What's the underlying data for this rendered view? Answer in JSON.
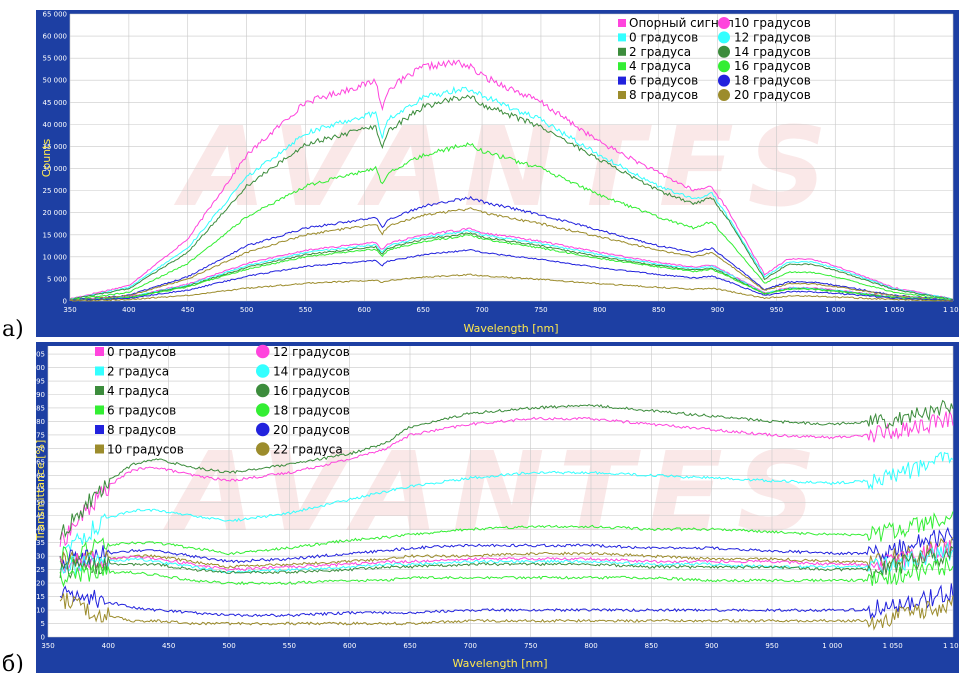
{
  "panels": [
    {
      "letter": "а)",
      "watermark": "AVANTES",
      "chart_data": {
        "type": "line",
        "xlabel": "Wavelength [nm]",
        "ylabel": "Counts",
        "xlim": [
          350,
          1100
        ],
        "ylim": [
          0,
          65000
        ],
        "xticks": [
          "350",
          "400",
          "450",
          "500",
          "550",
          "600",
          "650",
          "700",
          "750",
          "800",
          "850",
          "900",
          "950",
          "1 000",
          "1 050",
          "1 100"
        ],
        "yticks": [
          "0",
          "5 000",
          "10 000",
          "15 000",
          "20 000",
          "25 000",
          "30 000",
          "35 000",
          "40 000",
          "45 000",
          "50 000",
          "55 000",
          "60 000",
          "65 000"
        ],
        "grid": true,
        "legend_position": "top-right",
        "legend": [
          {
            "label": "Опорный сигнал",
            "color": "#ff44dd",
            "marker": "square"
          },
          {
            "label": "0 градусов",
            "color": "#33ffff",
            "marker": "square"
          },
          {
            "label": "2 градуса",
            "color": "#3c8c3c",
            "marker": "square"
          },
          {
            "label": "4 градуса",
            "color": "#33ee33",
            "marker": "square"
          },
          {
            "label": "6 градусов",
            "color": "#2222dd",
            "marker": "square"
          },
          {
            "label": "8 градусов",
            "color": "#9c8c2c",
            "marker": "square"
          },
          {
            "label": "10 градусов",
            "color": "#ff44dd",
            "marker": "circle"
          },
          {
            "label": "12 градусов",
            "color": "#33ffff",
            "marker": "circle"
          },
          {
            "label": "14 градусов",
            "color": "#3c8c3c",
            "marker": "circle"
          },
          {
            "label": "16 градусов",
            "color": "#33ee33",
            "marker": "circle"
          },
          {
            "label": "18 градусов",
            "color": "#2222dd",
            "marker": "circle"
          },
          {
            "label": "20 градусов",
            "color": "#9c8c2c",
            "marker": "circle"
          }
        ],
        "x": [
          350,
          400,
          450,
          500,
          550,
          600,
          610,
          615,
          620,
          650,
          680,
          690,
          700,
          750,
          800,
          850,
          880,
          895,
          910,
          940,
          960,
          980,
          1000,
          1050,
          1100
        ],
        "series": [
          {
            "color": "#ff44dd",
            "values": [
              500,
              3500,
              14000,
              33000,
              45000,
              49000,
              50000,
              43000,
              48000,
              53000,
              54000,
              53000,
              51000,
              45000,
              36000,
              29000,
              25000,
              26000,
              20000,
              6000,
              9500,
              9500,
              8000,
              3000,
              500
            ]
          },
          {
            "color": "#33ffff",
            "values": [
              400,
              3000,
              12000,
              28000,
              38000,
              42000,
              42500,
              37000,
              41000,
              46000,
              48000,
              48000,
              46500,
              41000,
              33000,
              26000,
              23000,
              24500,
              18500,
              5500,
              8800,
              8800,
              7500,
              2800,
              400
            ]
          },
          {
            "color": "#3c8c3c",
            "values": [
              350,
              2800,
              11000,
              26000,
              35500,
              39000,
              39500,
              34000,
              38500,
              44000,
              46000,
              46500,
              44500,
              39500,
              32000,
              25000,
              22000,
              23500,
              18000,
              5000,
              8300,
              8300,
              7000,
              2600,
              350
            ]
          },
          {
            "color": "#33ee33",
            "values": [
              250,
              2000,
              8500,
              19000,
              26000,
              29500,
              30000,
              26000,
              29000,
              33000,
              35000,
              35500,
              34000,
              30000,
              24000,
              19000,
              16500,
              18000,
              13500,
              4000,
              6500,
              6500,
              5500,
              2000,
              250
            ]
          },
          {
            "color": "#2222dd",
            "values": [
              150,
              1300,
              5500,
              12500,
              16500,
              18500,
              19000,
              16500,
              18500,
              21500,
              23000,
              23500,
              22500,
              19500,
              16000,
              12500,
              11000,
              12000,
              9000,
              2600,
              4300,
              4300,
              3600,
              1300,
              150
            ]
          },
          {
            "color": "#9c8c2c",
            "values": [
              140,
              1200,
              5000,
              11000,
              15000,
              17000,
              17500,
              15000,
              17000,
              19500,
              20500,
              21000,
              20000,
              17500,
              14500,
              11500,
              10000,
              11000,
              8200,
              2400,
              3900,
              3900,
              3300,
              1200,
              140
            ]
          },
          {
            "color": "#ff44dd",
            "values": [
              110,
              900,
              3800,
              8500,
              11500,
              13000,
              13300,
              11500,
              13000,
              15000,
              16000,
              16500,
              15500,
              13500,
              11000,
              8700,
              7700,
              8200,
              6200,
              1800,
              3000,
              3000,
              2500,
              900,
              110
            ]
          },
          {
            "color": "#33ffff",
            "values": [
              100,
              850,
              3600,
              8000,
              11000,
              12500,
              12800,
              11000,
              12500,
              14500,
              15500,
              16000,
              15000,
              13000,
              10500,
              8300,
              7300,
              7900,
              6000,
              1700,
              2900,
              2900,
              2400,
              850,
              100
            ]
          },
          {
            "color": "#3c8c3c",
            "values": [
              95,
              800,
              3400,
              7600,
              10500,
              12000,
              12200,
              10500,
              12000,
              14000,
              15000,
              15500,
              14500,
              12500,
              10000,
              8000,
              7000,
              7500,
              5700,
              1650,
              2750,
              2750,
              2300,
              800,
              95
            ]
          },
          {
            "color": "#33ee33",
            "values": [
              90,
              750,
              3200,
              7200,
              10000,
              11500,
              11700,
              10000,
              11500,
              13500,
              14500,
              15000,
              14000,
              12000,
              9600,
              7700,
              6700,
              7200,
              5500,
              1600,
              2650,
              2650,
              2200,
              780,
              90
            ]
          },
          {
            "color": "#2222dd",
            "values": [
              70,
              600,
              2500,
              5600,
              7800,
              9000,
              9200,
              8000,
              9000,
              10500,
              11300,
              11700,
              11000,
              9400,
              7500,
              6000,
              5200,
              5600,
              4300,
              1250,
              2100,
              2100,
              1750,
              620,
              70
            ]
          },
          {
            "color": "#9c8c2c",
            "values": [
              40,
              300,
              1300,
              2900,
              4000,
              4600,
              4700,
              4100,
              4600,
              5400,
              5800,
              6000,
              5700,
              4900,
              3900,
              3100,
              2700,
              2900,
              2200,
              650,
              1100,
              1100,
              900,
              330,
              40
            ]
          }
        ]
      }
    },
    {
      "letter": "б)",
      "watermark": "AVANTES",
      "chart_data": {
        "type": "line",
        "xlabel": "Wavelength [nm]",
        "ylabel": "Transmittance [%]",
        "xlim": [
          350,
          1100
        ],
        "ylim": [
          0,
          108
        ],
        "xticks": [
          "350",
          "400",
          "450",
          "500",
          "550",
          "600",
          "650",
          "700",
          "750",
          "800",
          "850",
          "900",
          "950",
          "1 000",
          "1 050",
          "1 100"
        ],
        "yticks": [
          "0",
          "5",
          "10",
          "15",
          "20",
          "25",
          "30",
          "35",
          "40",
          "45",
          "50",
          "55",
          "60",
          "65",
          "70",
          "75",
          "80",
          "85",
          "90",
          "95",
          "100",
          "105"
        ],
        "grid": true,
        "legend_position": "top-left",
        "legend": [
          {
            "label": "0 градусов",
            "color": "#ff44dd",
            "marker": "square"
          },
          {
            "label": "2 градуса",
            "color": "#33ffff",
            "marker": "square"
          },
          {
            "label": "4 градуса",
            "color": "#3c8c3c",
            "marker": "square"
          },
          {
            "label": "6 градусов",
            "color": "#33ee33",
            "marker": "square"
          },
          {
            "label": "8 градусов",
            "color": "#2222dd",
            "marker": "square"
          },
          {
            "label": "10 градусов",
            "color": "#9c8c2c",
            "marker": "square"
          },
          {
            "label": "12 градусов",
            "color": "#ff44dd",
            "marker": "circle"
          },
          {
            "label": "14 градусов",
            "color": "#33ffff",
            "marker": "circle"
          },
          {
            "label": "16 градусов",
            "color": "#3c8c3c",
            "marker": "circle"
          },
          {
            "label": "18 градусов",
            "color": "#33ee33",
            "marker": "circle"
          },
          {
            "label": "20 градусов",
            "color": "#2222dd",
            "marker": "circle"
          },
          {
            "label": "22 градуса",
            "color": "#9c8c2c",
            "marker": "circle"
          }
        ],
        "x": [
          360,
          380,
          400,
          420,
          440,
          470,
          500,
          550,
          600,
          630,
          650,
          700,
          750,
          800,
          850,
          900,
          950,
          1000,
          1030,
          1060,
          1080,
          1100
        ],
        "series": [
          {
            "color": "#ff44dd",
            "values": [
              35,
              46,
              56,
              62,
              63,
              60,
              58,
              61,
              66,
              70,
              75,
              79,
              81,
              81,
              79,
              77,
              75,
              74,
              75,
              77,
              79,
              81
            ]
          },
          {
            "color": "#3c8c3c",
            "values": [
              38,
              48,
              58,
              64,
              66,
              63,
              61,
              64,
              68,
              72,
              78,
              83,
              85,
              86,
              84,
              82,
              80,
              79,
              80,
              82,
              84,
              85
            ]
          },
          {
            "color": "#33ffff",
            "values": [
              30,
              38,
              44,
              47,
              47,
              45,
              43,
              46,
              51,
              54,
              56,
              59,
              61,
              61,
              60,
              59,
              58,
              57,
              58,
              61,
              64,
              67
            ]
          },
          {
            "color": "#33ee33",
            "values": [
              30,
              32,
              34,
              35,
              35,
              33,
              31,
              33,
              36,
              37,
              38,
              40,
              41,
              41,
              40,
              40,
              39,
              38,
              38,
              40,
              42,
              44
            ]
          },
          {
            "color": "#2222dd",
            "values": [
              28,
              30,
              31,
              32,
              32,
              30,
              28,
              29,
              31,
              32,
              33,
              34,
              34,
              34,
              33,
              33,
              32,
              31,
              31,
              33,
              36,
              38
            ]
          },
          {
            "color": "#9c8c2c",
            "values": [
              28,
              29,
              29,
              30,
              30,
              28,
              26,
              27,
              28,
              29,
              30,
              30,
              31,
              31,
              30,
              29,
              29,
              28,
              28,
              30,
              32,
              34
            ]
          },
          {
            "color": "#ff44dd",
            "values": [
              27,
              28,
              29,
              30,
              29,
              27,
              25,
              26,
              27,
              28,
              28,
              29,
              29,
              29,
              28,
              28,
              28,
              27,
              27,
              29,
              31,
              33
            ]
          },
          {
            "color": "#33ffff",
            "values": [
              26,
              27,
              28,
              29,
              28,
              26,
              24,
              25,
              26,
              27,
              27,
              28,
              28,
              28,
              27,
              27,
              26,
              26,
              26,
              28,
              30,
              32
            ]
          },
          {
            "color": "#3c8c3c",
            "values": [
              25,
              26,
              27,
              27,
              27,
              25,
              24,
              24,
              25,
              26,
              26,
              27,
              27,
              27,
              26,
              26,
              26,
              25,
              25,
              27,
              29,
              31
            ]
          },
          {
            "color": "#33ee33",
            "values": [
              22,
              23,
              24,
              24,
              23,
              21,
              20,
              20,
              21,
              21,
              22,
              22,
              22,
              22,
              22,
              21,
              21,
              21,
              21,
              23,
              25,
              27
            ]
          },
          {
            "color": "#2222dd",
            "values": [
              18,
              15,
              13,
              11,
              10,
              9,
              8,
              8,
              9,
              9,
              9,
              10,
              10,
              10,
              10,
              10,
              10,
              10,
              10,
              12,
              14,
              17
            ]
          },
          {
            "color": "#9c8c2c",
            "values": [
              14,
              10,
              8,
              6,
              6,
              5,
              5,
              5,
              5,
              5,
              5,
              6,
              6,
              6,
              6,
              6,
              6,
              6,
              6,
              8,
              10,
              13
            ]
          }
        ]
      }
    }
  ]
}
